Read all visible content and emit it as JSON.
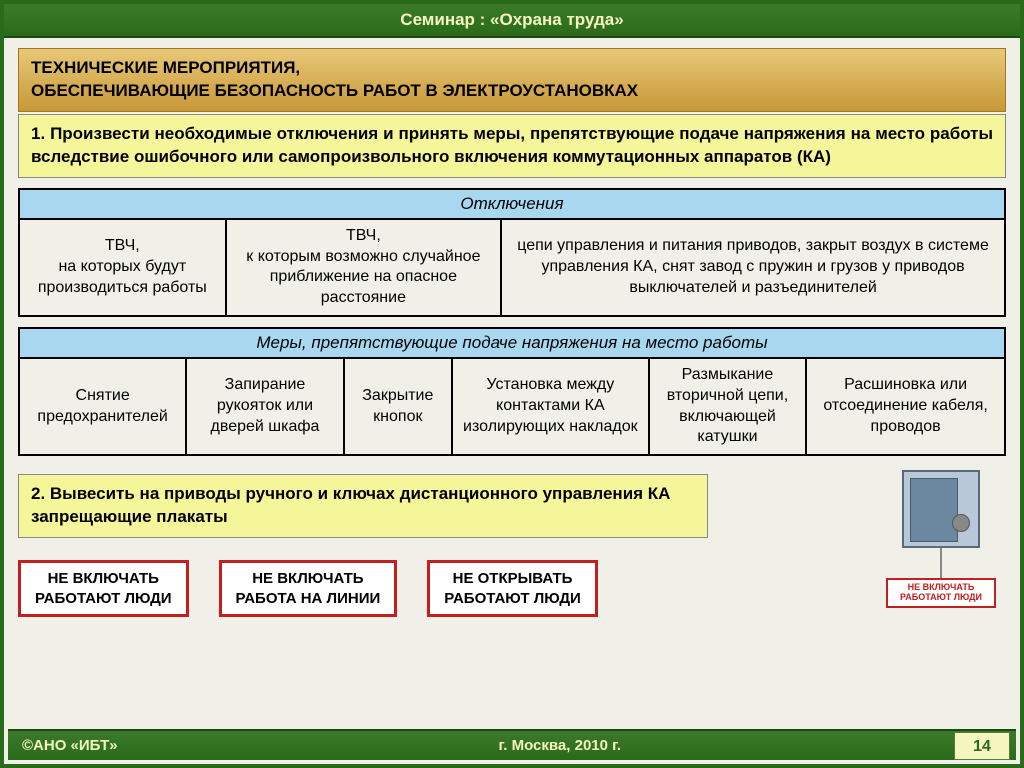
{
  "header": "Семинар : «Охрана труда»",
  "title_line1": "ТЕХНИЧЕСКИЕ МЕРОПРИЯТИЯ,",
  "title_line2": "ОБЕСПЕЧИВАЮЩИЕ БЕЗОПАСНОСТЬ РАБОТ В ЭЛЕКТРОУСТАНОВКАХ",
  "step1": "1. Произвести необходимые отключения и принять меры, препятствующие подаче напряжения на место работы вследствие ошибочного или самопроизвольного включения коммутационных аппаратов (КА)",
  "table1": {
    "header": "Отключения",
    "widths": [
      "21%",
      "28%",
      "51%"
    ],
    "cells": [
      "ТВЧ,\nна которых будут производиться работы",
      "ТВЧ,\nк которым возможно случайное приближение на опасное расстояние",
      "цепи управления и питания приводов, закрыт воздух в системе управления КА, снят завод с пружин и грузов у приводов выключателей и разъединителей"
    ]
  },
  "table2": {
    "header": "Меры, препятствующие подаче напряжения на место работы",
    "widths": [
      "17%",
      "16%",
      "11%",
      "20%",
      "16%",
      "20%"
    ],
    "cells": [
      "Снятие предохранителей",
      "Запирание рукояток или дверей шкафа",
      "Закрытие кнопок",
      "Установка между контактами КА изолирующих накладок",
      "Размыкание вторичной цепи, включающей катушки",
      "Расшиновка или отсоединение кабеля, проводов"
    ]
  },
  "step2": "2. Вывесить на приводы ручного и ключах дистанционного управления КА запрещающие плакаты",
  "signs": [
    "НЕ ВКЛЮЧАТЬ\nРАБОТАЮТ ЛЮДИ",
    "НЕ ВКЛЮЧАТЬ\nРАБОТА НА ЛИНИИ",
    "НЕ ОТКРЫВАТЬ\nРАБОТАЮТ ЛЮДИ"
  ],
  "tag_text": "НЕ ВКЛЮЧАТЬ\nРАБОТАЮТ ЛЮДИ",
  "footer": {
    "left": "©АНО «ИБТ»",
    "center": "г. Москва,  2010 г.",
    "page": "14"
  },
  "colors": {
    "green_dark": "#2a6b1a",
    "gold_top": "#e8c878",
    "gold_bottom": "#c89838",
    "yellow": "#f5f59a",
    "blue_header": "#a8d8f0",
    "red_border": "#c02020"
  }
}
